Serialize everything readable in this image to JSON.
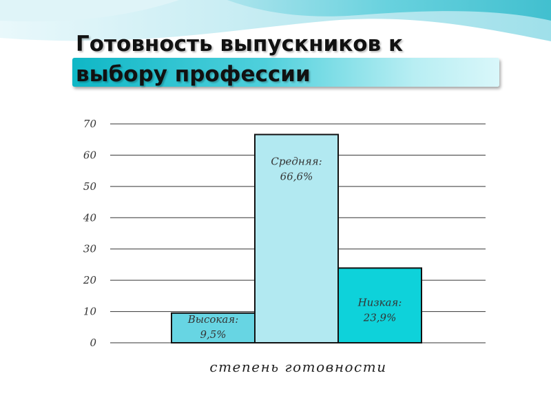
{
  "title": "Готовность выпускников к\nвыбору профессии",
  "colors": {
    "header_wave_light": "#d4f1f6",
    "header_wave_mid": "#8fdde7",
    "header_wave_dark": "#3cc3d2",
    "gridline": "#333333"
  },
  "chart_data": {
    "type": "bar",
    "categories": [
      "Высокая",
      "Средняя",
      "Низкая"
    ],
    "values": [
      9.5,
      66.6,
      23.9
    ],
    "data_labels": [
      [
        "Высокая:",
        "9,5%"
      ],
      [
        "Средняя:",
        "66,6%"
      ],
      [
        "Низкая:",
        "23,9%"
      ]
    ],
    "bar_colors": [
      "#67d5e3",
      "#b2e9f1",
      "#0ed2da"
    ],
    "title": "",
    "xlabel": "степень готовности",
    "ylabel": "",
    "ylim": [
      0,
      70
    ],
    "yticks": [
      0,
      10,
      20,
      30,
      40,
      50,
      60,
      70
    ],
    "grid": true,
    "legend": "none"
  }
}
